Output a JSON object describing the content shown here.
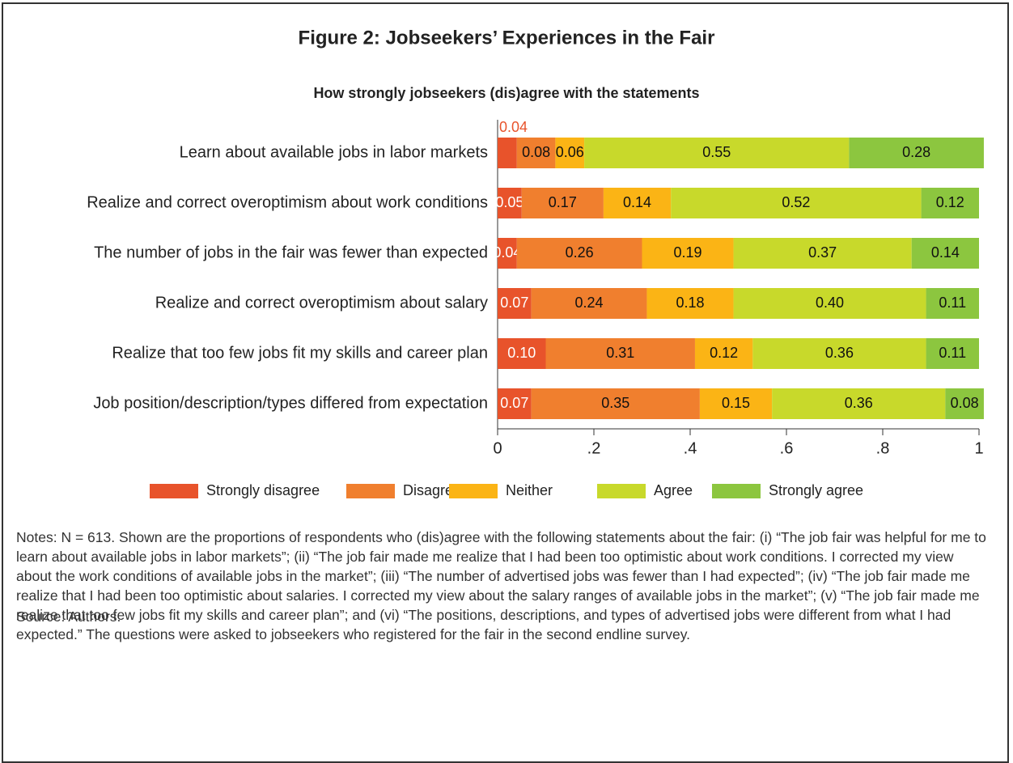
{
  "chart_data": {
    "type": "stacked_barh",
    "title": "Figure 2: Jobseekers’ Experiences in the Fair",
    "subtitle": "How strongly jobseekers (dis)agree with the statements",
    "categories": [
      "Learn about available jobs in labor markets",
      "Realize and correct overoptimism about work conditions",
      "The number of jobs in the fair was fewer than expected",
      "Realize and correct overoptimism about salary",
      "Realize that too few jobs fit my skills and career plan",
      "Job position/description/types differed from expectation"
    ],
    "series": [
      {
        "name": "Strongly disagree",
        "color": "#e8532b",
        "values": [
          0.04,
          0.05,
          0.04,
          0.07,
          0.1,
          0.07
        ],
        "value_labels": [
          "0.04",
          "0.05",
          "0.04",
          "0.07",
          "0.10",
          "0.07"
        ]
      },
      {
        "name": "Disagree",
        "color": "#f07f2e",
        "values": [
          0.08,
          0.17,
          0.26,
          0.24,
          0.31,
          0.35
        ],
        "value_labels": [
          "0.08",
          "0.17",
          "0.26",
          "0.24",
          "0.31",
          "0.35"
        ]
      },
      {
        "name": "Neither",
        "color": "#fbb415",
        "values": [
          0.06,
          0.14,
          0.19,
          0.18,
          0.12,
          0.15
        ],
        "value_labels": [
          "0.06",
          "0.14",
          "0.19",
          "0.18",
          "0.12",
          "0.15"
        ]
      },
      {
        "name": "Agree",
        "color": "#c8d92b",
        "values": [
          0.55,
          0.52,
          0.37,
          0.4,
          0.36,
          0.36
        ],
        "value_labels": [
          "0.55",
          "0.52",
          "0.37",
          "0.40",
          "0.36",
          "0.36"
        ]
      },
      {
        "name": "Strongly agree",
        "color": "#8cc63f",
        "values": [
          0.28,
          0.12,
          0.14,
          0.11,
          0.11,
          0.08
        ],
        "value_labels": [
          "0.28",
          "0.12",
          "0.14",
          "0.11",
          "0.11",
          "0.08"
        ]
      }
    ],
    "xlim": [
      0,
      1
    ],
    "xticks": [
      0,
      {
        "value": 0.2,
        "label": ".2"
      },
      {
        "value": 0.4,
        "label": ".4"
      },
      {
        "value": 0.6,
        "label": ".6"
      },
      {
        "value": 0.8,
        "label": ".8"
      },
      1
    ],
    "legend": "bottom"
  },
  "notes": "Notes: N = 613. Shown are the proportions of respondents who (dis)agree with the following statements about the fair: (i) “The job fair was helpful for me to learn about available jobs in labor markets”; (ii) “The job fair made me realize that I had been too optimistic about work conditions. I corrected my view about the work conditions of available jobs in the market”; (iii) “The number of advertised jobs was fewer than I had expected”; (iv) “The job fair made me realize that I had been too optimistic about salaries. I corrected my view about the salary ranges of available jobs in the market”; (v) “The job fair made me realize that too few jobs fit my skills and career plan”; and (vi) “The positions, descriptions, and types of advertised jobs were different from what I had expected.” The questions were asked to jobseekers who registered for the fair in the second endline survey.",
  "source": "Source: Authors."
}
